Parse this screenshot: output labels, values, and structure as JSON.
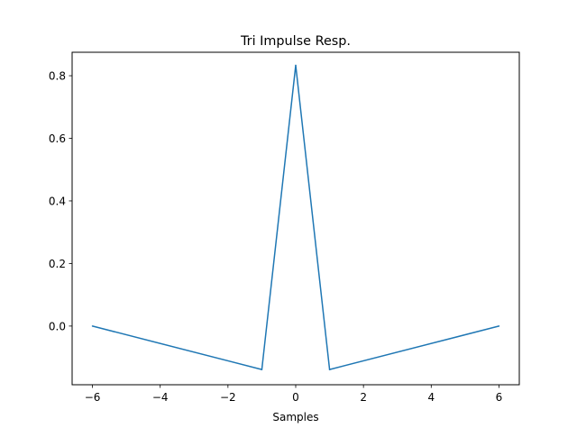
{
  "chart_data": {
    "type": "line",
    "title": "Tri Impulse Resp.",
    "xlabel": "Samples",
    "ylabel": "",
    "xlim": [
      -6.6,
      6.6
    ],
    "ylim": [
      -0.1875,
      0.875
    ],
    "x_ticks": [
      -6,
      -4,
      -2,
      0,
      2,
      4,
      6
    ],
    "x_tick_labels": [
      "−6",
      "−4",
      "−2",
      "0",
      "2",
      "4",
      "6"
    ],
    "y_ticks": [
      0.0,
      0.2,
      0.4,
      0.6,
      0.8
    ],
    "y_tick_labels": [
      "0.0",
      "0.2",
      "0.4",
      "0.6",
      "0.8"
    ],
    "grid": false,
    "series": [
      {
        "color": "#1f77b4",
        "x": [
          -6,
          -1,
          0,
          1,
          6
        ],
        "y": [
          0.0,
          -0.1389,
          0.8333,
          -0.1389,
          0.0
        ]
      }
    ]
  }
}
